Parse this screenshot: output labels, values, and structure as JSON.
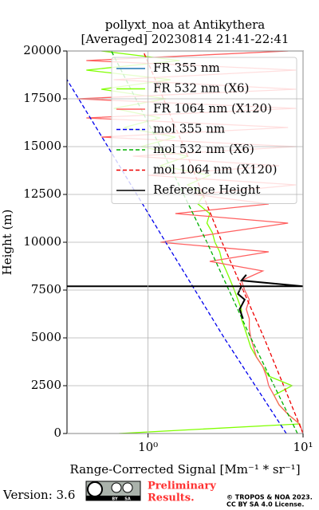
{
  "chart_data": {
    "type": "line",
    "title": [
      "pollyxt_noa at Antikythera",
      "[Averaged] 20230814 21:41-22:41"
    ],
    "x_label": "Range-Corrected Signal [Mm⁻¹ * sr⁻¹]",
    "y_label": "Height (m)",
    "xscale": "log",
    "xlim": [
      0.3,
      10
    ],
    "xticks": [
      {
        "value": 1,
        "label": "10⁰"
      },
      {
        "value": 10,
        "label": "10¹"
      }
    ],
    "ylim": [
      0,
      20000
    ],
    "yticks": [
      0,
      2500,
      5000,
      7500,
      10000,
      12500,
      15000,
      17500,
      20000
    ],
    "grid": true,
    "legend": "upper right",
    "series": [
      {
        "name": "FR 355 nm",
        "color": "#1f77b4",
        "style": "solid",
        "height": [],
        "values": []
      },
      {
        "name": "FR 532 nm (X6)",
        "color": "#80ff00",
        "style": "solid",
        "height": [
          0,
          500,
          1000,
          1500,
          2000,
          2500,
          3000,
          3500,
          4000,
          4500,
          5000,
          5500,
          6000,
          6500,
          7000,
          7500,
          8000,
          8500,
          9000,
          9500,
          10000,
          10500,
          11000,
          11500,
          12000,
          12500,
          13000,
          13500,
          14000,
          14500,
          15000,
          15500,
          16000,
          16500,
          17000,
          17500,
          18000,
          18500,
          19000,
          19500,
          20000
        ],
        "values": [
          0.65,
          9.5,
          8,
          7,
          6.5,
          8.5,
          6,
          5.5,
          5,
          4.6,
          4.4,
          4.2,
          4,
          4,
          3.8,
          3.6,
          3.4,
          3.2,
          3,
          2.9,
          2.7,
          2.6,
          2.4,
          2.5,
          2.1,
          2.3,
          1.8,
          2.5,
          1.2,
          1.8,
          0.9,
          1.5,
          0.7,
          1.2,
          0.6,
          1.3,
          0.5,
          1.4,
          0.4,
          1.6,
          0.5
        ]
      },
      {
        "name": "FR 1064 nm (X120)",
        "color": "#ff6060",
        "style": "solid",
        "height": [
          0,
          500,
          1000,
          1500,
          2000,
          2500,
          3000,
          3500,
          4000,
          4500,
          5000,
          5500,
          6000,
          6500,
          7000,
          7500,
          8000,
          8500,
          9000,
          9500,
          10000,
          10500,
          11000,
          11500,
          12000,
          12500,
          13000,
          13500,
          14000,
          14500,
          15000,
          15500,
          16000,
          16500,
          17000,
          17500,
          18000,
          18500,
          19000,
          19500,
          20000
        ],
        "values": [
          10,
          9.5,
          8,
          7,
          6.5,
          6,
          5.8,
          5.5,
          5,
          4.8,
          4.6,
          4.5,
          4.5,
          4.3,
          4.5,
          4.2,
          4,
          5.5,
          2.5,
          6,
          1.2,
          3,
          8,
          1.5,
          6,
          2,
          9,
          1,
          7,
          0.8,
          9,
          0.5,
          8,
          0.4,
          9,
          0.35,
          9,
          0.6,
          9,
          0.4,
          8
        ]
      },
      {
        "name": "mol 355 nm",
        "color": "#0000ee",
        "style": "dashed",
        "height": [
          0,
          5000,
          10000,
          15000,
          18500
        ],
        "values": [
          7.8,
          3.1,
          1.3,
          0.55,
          0.3
        ]
      },
      {
        "name": "mol 532 nm (X6)",
        "color": "#00b000",
        "style": "dashed",
        "height": [
          0,
          5000,
          10000,
          15000,
          20000
        ],
        "values": [
          9.2,
          4.6,
          2.4,
          1.2,
          0.58
        ]
      },
      {
        "name": "mol 1064 nm (X120)",
        "color": "#ee0000",
        "style": "dashed",
        "height": [
          0,
          2500,
          5000,
          10000,
          15000,
          20000
        ],
        "values": [
          10,
          7.5,
          5.6,
          3,
          1.7,
          0.93
        ]
      },
      {
        "name": "Reference Height",
        "color": "#000000",
        "style": "solid",
        "height": [
          6000,
          6500,
          7000,
          7300,
          7700,
          7700,
          7700,
          8000,
          8300
        ],
        "values": [
          4.1,
          3.9,
          4.2,
          3.8,
          4,
          0.3,
          10,
          4,
          4.3
        ]
      }
    ],
    "footer": {
      "version": "Version: 3.6",
      "badge": [
        "BY",
        "SA"
      ],
      "status": [
        "Preliminary",
        "Results."
      ],
      "copyright": [
        "© TROPOS & NOA 2023.",
        "CC BY SA 4.0 License."
      ]
    }
  }
}
